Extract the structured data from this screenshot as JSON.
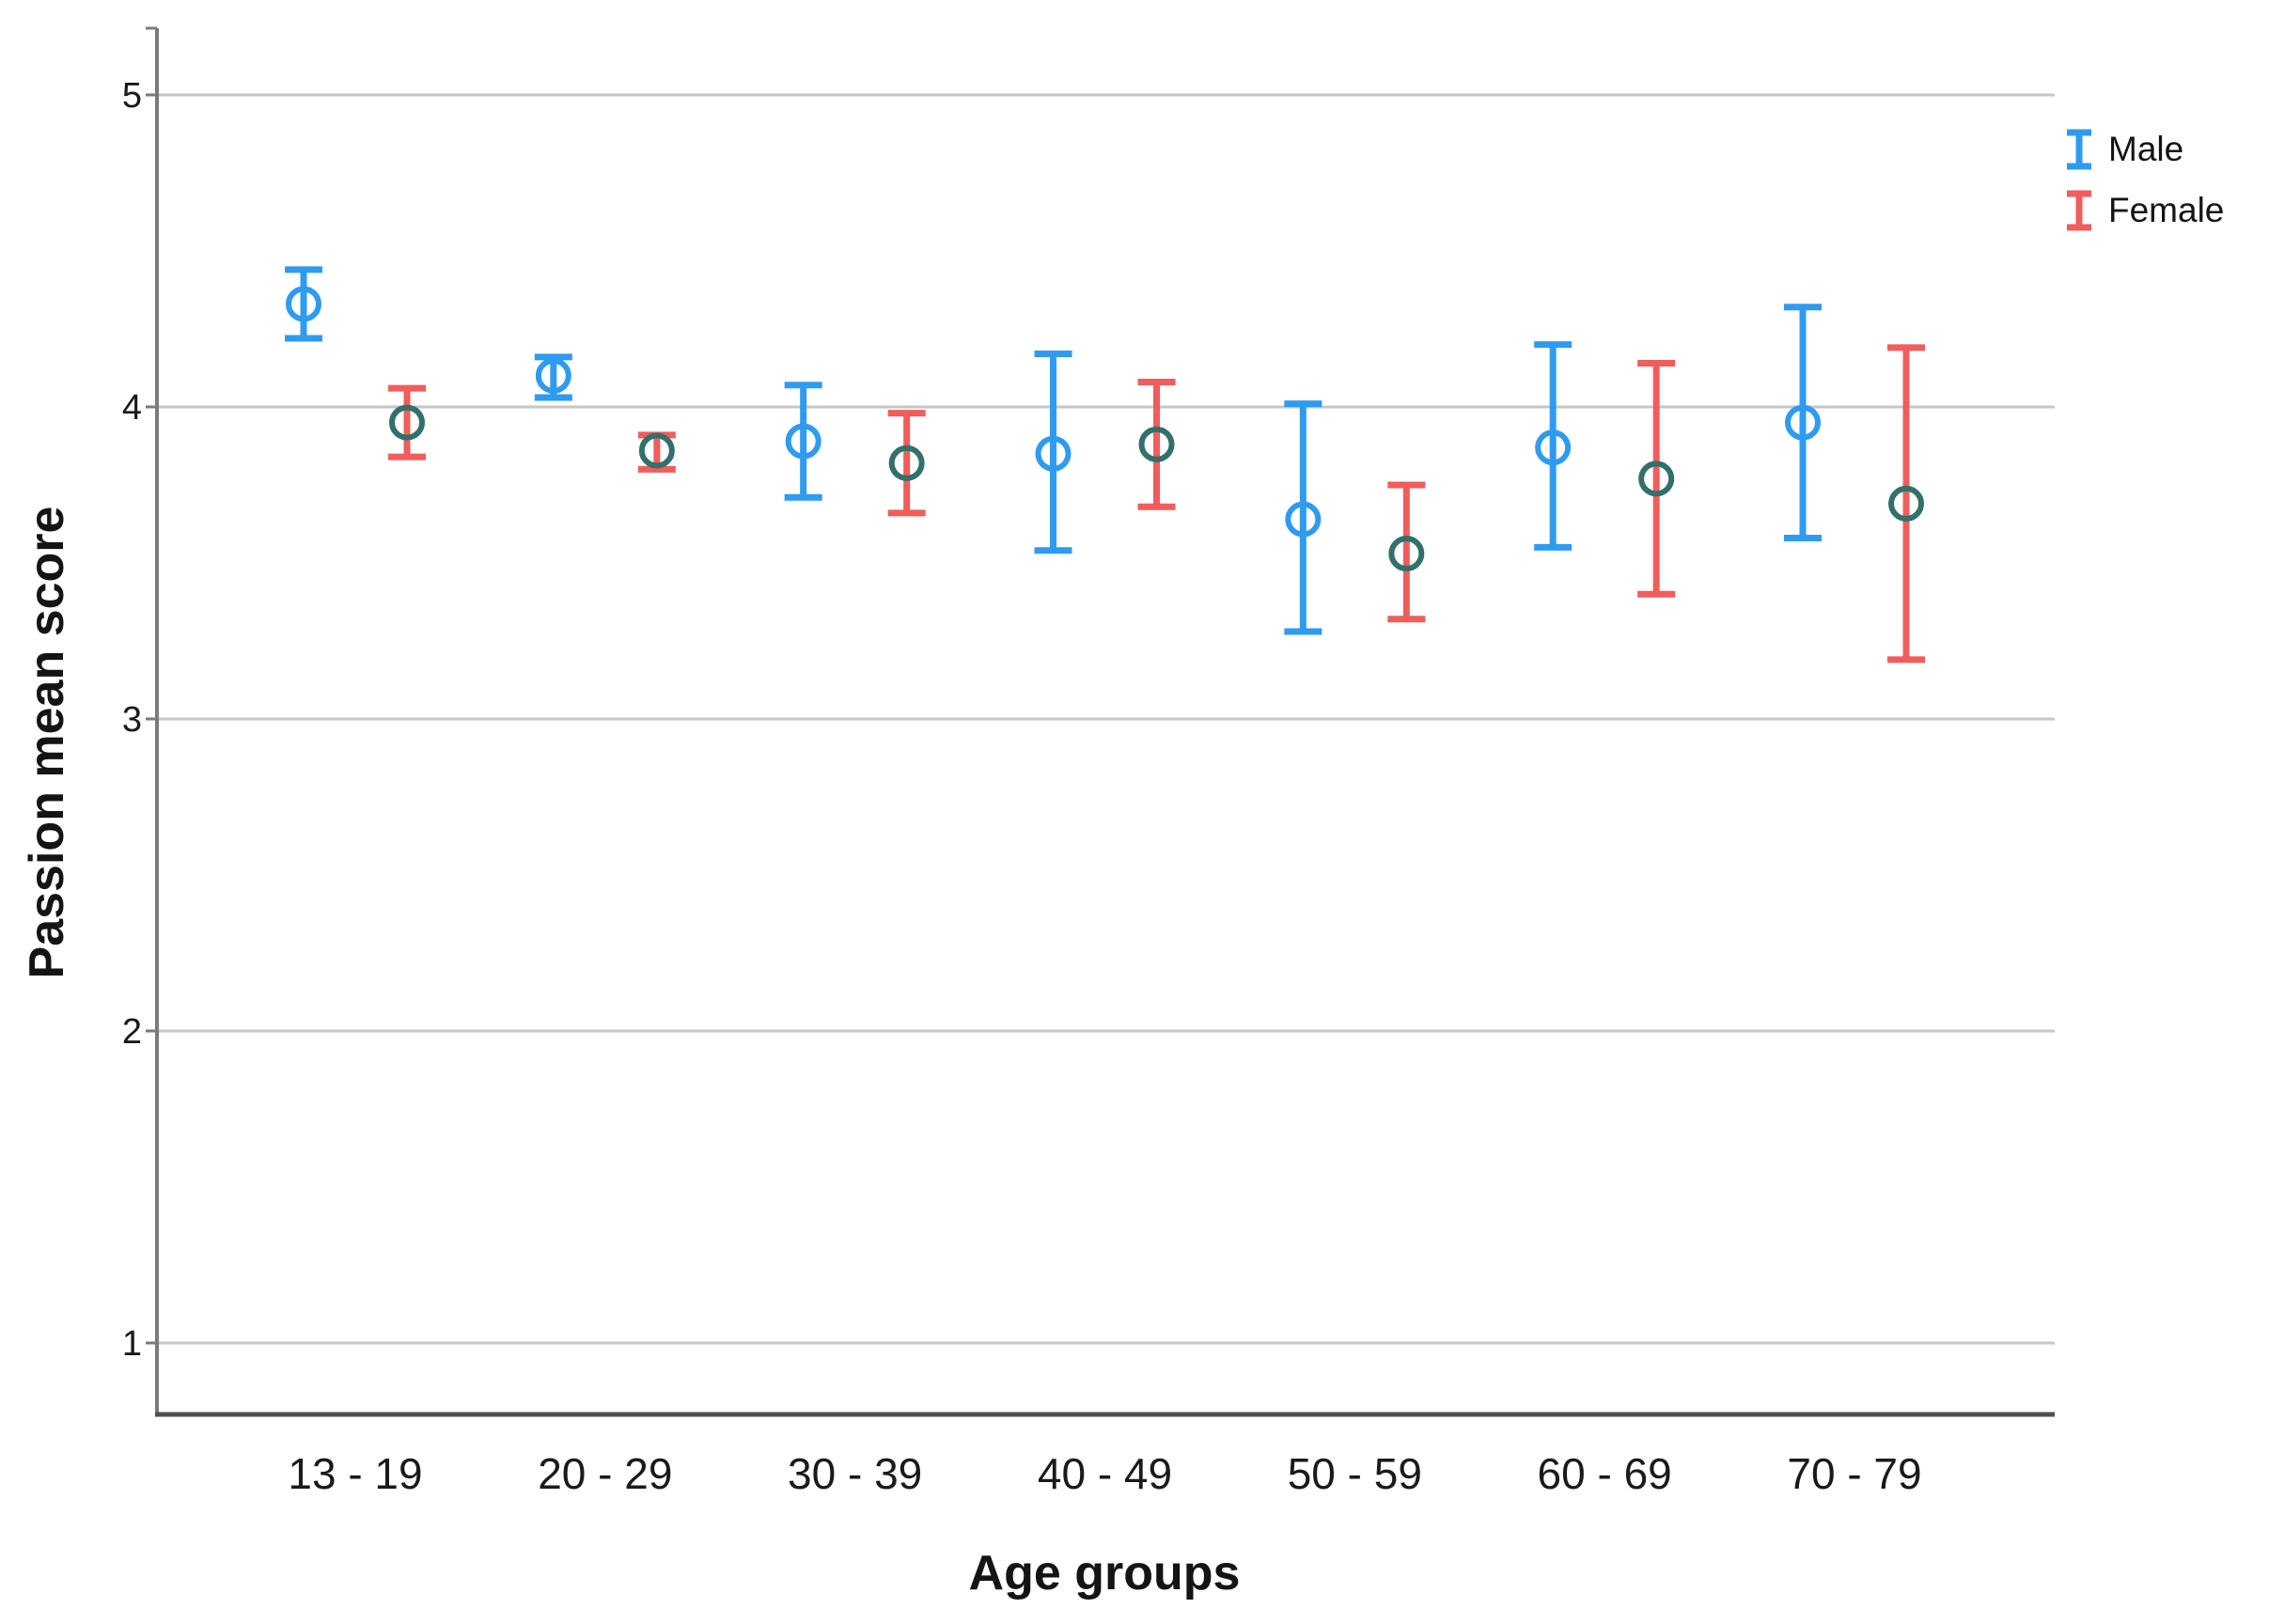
{
  "chart_data": {
    "type": "errorbar",
    "title": "",
    "xlabel": "Age groups",
    "ylabel": "Passion mean score",
    "categories": [
      "13 - 19",
      "20 - 29",
      "30 - 39",
      "40 - 49",
      "50 - 59",
      "60 - 69",
      "70 - 79"
    ],
    "yticks": [
      1,
      2,
      3,
      4,
      5
    ],
    "ylim": [
      0.77,
      5.2
    ],
    "grid": true,
    "legend_position": "top-right",
    "colors": {
      "male": "#2E9BF0",
      "female": "#F15C5C",
      "female_marker": "#31706B",
      "gridline": "#C6C6C6",
      "y_axis": "#7A7A7A",
      "x_axis": "#4F4F4F",
      "text": "#1A1A1A"
    },
    "series": [
      {
        "name": "Male",
        "color": "#2E9BF0",
        "marker_color": "#2E9BF0",
        "means": [
          4.33,
          4.1,
          3.89,
          3.85,
          3.64,
          3.87,
          3.95
        ],
        "ci_low": [
          4.22,
          4.03,
          3.71,
          3.54,
          3.28,
          3.55,
          3.58
        ],
        "ci_high": [
          4.44,
          4.16,
          4.07,
          4.17,
          4.01,
          4.2,
          4.32
        ]
      },
      {
        "name": "Female",
        "color": "#F15C5C",
        "marker_color": "#31706B",
        "means": [
          3.95,
          3.86,
          3.82,
          3.88,
          3.53,
          3.77,
          3.69
        ],
        "ci_low": [
          3.84,
          3.8,
          3.66,
          3.68,
          3.32,
          3.4,
          3.19
        ],
        "ci_high": [
          4.06,
          3.91,
          3.98,
          4.08,
          3.75,
          4.14,
          4.19
        ]
      }
    ]
  }
}
